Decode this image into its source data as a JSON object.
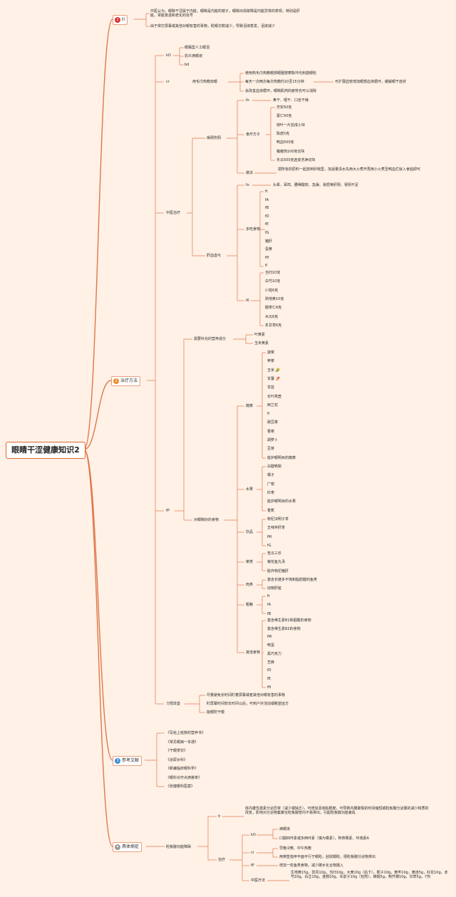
{
  "root": "眼睛干涩健康知识2",
  "colors": {
    "line": "#e0764a",
    "bg": "#fff1e6",
    "n1": "#d9352c",
    "n2": "#ee8a2b",
    "n3": "#3c8fd6",
    "n4": "#999999"
  },
  "b1": {
    "num": "1",
    "label": "ti",
    "notes": [
      "中医认为，眼睛干涩属于内脏，眼睛是内脏的镜子，眼睛出现故障是内脏异常的表现，特别是肝脏，肾脏衰退和老化的信号",
      "由于常打屏幕或其他对眼有害的事物，眨眼次数减少，导致泪液蒸发，泪液减少"
    ]
  },
  "b2": {
    "num": "2",
    "label": "治疗方法",
    "ko": {
      "label": "kO",
      "items": [
        "眼霜型人工眼泪",
        "抗炎滴眼液",
        "bd"
      ]
    },
    "cr": {
      "label": "cr",
      "sub": "用毛巾热敷双眼",
      "items": [
        "使用热毛巾热敷眼部眼圈按摩脉冲光刺激眼睑",
        "每天一次两次每次热敷约10至15分钟",
        "会改善血液循环，眼睛肌肉的疲劳也可以消除"
      ],
      "extra": "可扩展血管增加眼部血液循环，缓解眼干症状"
    },
    "tcm": {
      "label": "中医治疗",
      "zc": {
        "label": "燥邪伤阴",
        "fo": "fo",
        "fo_text": "鼻干、咽干、口舌干燥",
        "recipe_label": "食疗方子",
        "recipe": [
          "芡实50克",
          "薏仁50克",
          "荷叶一片剪成小块",
          "陈皮5克",
          "鸭血500克",
          "猪瘦肉100克切块",
          "冬瓜500克连皮洗净切块"
        ],
        "method_label": "做法",
        "method": "把所有的原料一起放到砂锅里，加适量清水先用大火煮开再用小火煮至鸭血烂就入食盐即可"
      },
      "gx": {
        "label": "肝血虚弓",
        "fo": "fo",
        "fo_text": "头晕、耳鸣、腰稀酸软、急躁、易怒等肝阴、肾阴不足",
        "food_label": "多吃食物",
        "foods": [
          "ft",
          "fA",
          "fB",
          "fD",
          "fE",
          "fG",
          "猪肝",
          "蛋黄",
          "fH",
          "fI"
        ],
        "ik_label": "IK",
        "herbs": [
          "当归10克",
          "白芍10克",
          "川芎6克",
          "熟地黄10克",
          "酸枣仁6克",
          "木瓜6克",
          "炙甘草6克"
        ]
      }
    },
    "fp": {
      "label": "fP",
      "nutri_label": "需要补充的营养成分",
      "nutri": [
        "叶黄素",
        "玉米黄素"
      ],
      "good_label": "对眼睛好的食物",
      "veg_label": "蔬菜",
      "veg": [
        "菠菜",
        "荠菜",
        "玉米 🌽",
        "甘薯 🍠",
        "甘蓝",
        "长叶莴苣",
        "西兰花",
        "fI",
        "豌豆菜",
        "香菜",
        "胡萝卜",
        "豆芽",
        "能护眼明目的蔬菜"
      ],
      "fruit_label": "水果",
      "fruit": [
        "白醋鸭梨",
        "橘子",
        "广柑",
        "红枣",
        "能护眼明目的水果",
        "香蕉"
      ],
      "drink_label": "饮品",
      "drink": [
        "枸杞决明子茶",
        "五味养肝茶",
        "fM",
        "fG"
      ],
      "dish_label": "菜类",
      "dish": [
        "苦瓜三珍",
        "菊花鱼丸汤",
        "胶炸枸杞猪肝"
      ],
      "meat_label": "肉类",
      "meat": [
        "富含长链多不饱和脂肪酸的鱼类",
        "动物肝脏"
      ],
      "grain_label": "粗粮",
      "grain": [
        "ft",
        "fA",
        "fB"
      ],
      "other_label": "其他食物",
      "other": [
        "富含维生素B1和烟酸的食物",
        "富含维生素B2的食物",
        "fM",
        "鸭蛋",
        "黑巧克力",
        "芝麻",
        "fD",
        "fE",
        "fH"
      ],
      "habit_label": "习惯改善",
      "habits": [
        "尽量避免长时间盯着屏幕或者其他对眼有害的事物",
        "盯屏幕时间较长时间以后，可到户外活动或眺望远方",
        "能眼防干眼"
      ]
    }
  },
  "b3": {
    "num": "3",
    "label": "参考文献",
    "refs": [
      "《写给上班族的营养书》",
      "《常见眼病一本通》",
      "《干眼茶饮》",
      "《泌尿女科》",
      "《新编临床眼科学》",
      "《眼科诊疗点滴荟萃》",
      "《张健眼科医案》"
    ]
  },
  "b4": {
    "num": "4",
    "label": "具体病症",
    "sub": "睑板腺功能障碍",
    "ti": "ti",
    "ti_text": "体内雄性激素分泌异常（减少或缺乏），可增加泪液粘稠度，可导致内膜破裂的时间缩短或睑板腺分泌量的减少和质的改变，影响对分泌物集聚在睑板腺管内不易排出，引起睑板腺功能紊乱",
    "treat_label": "治疗",
    "ko_label": "kO",
    "ko": [
      "滴眼液",
      "口服四环素或多西环素（慎为霉素），阿奇霉素、环孢素A"
    ],
    "cr_label": "cr",
    "cr": [
      "早晚冷敷、中午热敷",
      "用棉签指甲平面平行于眼睑，刮拭眼睑，把睑板腺分泌物排出"
    ],
    "fp_label": "fP",
    "fp": "增加一些鱼类食物，减少碳水化合物摄入",
    "cm_label": "中医疗法",
    "cm": "生地黄15g，防风10g，当归10g，大黄10g（后下），栀子10g，黄芩10g，黄连5g，红花10g，赤芍10g，白芷10g，连翘10g，车前子10g（包煎），蝉蜕5g，荆芥穗10g，甘草5g。7剂"
  }
}
